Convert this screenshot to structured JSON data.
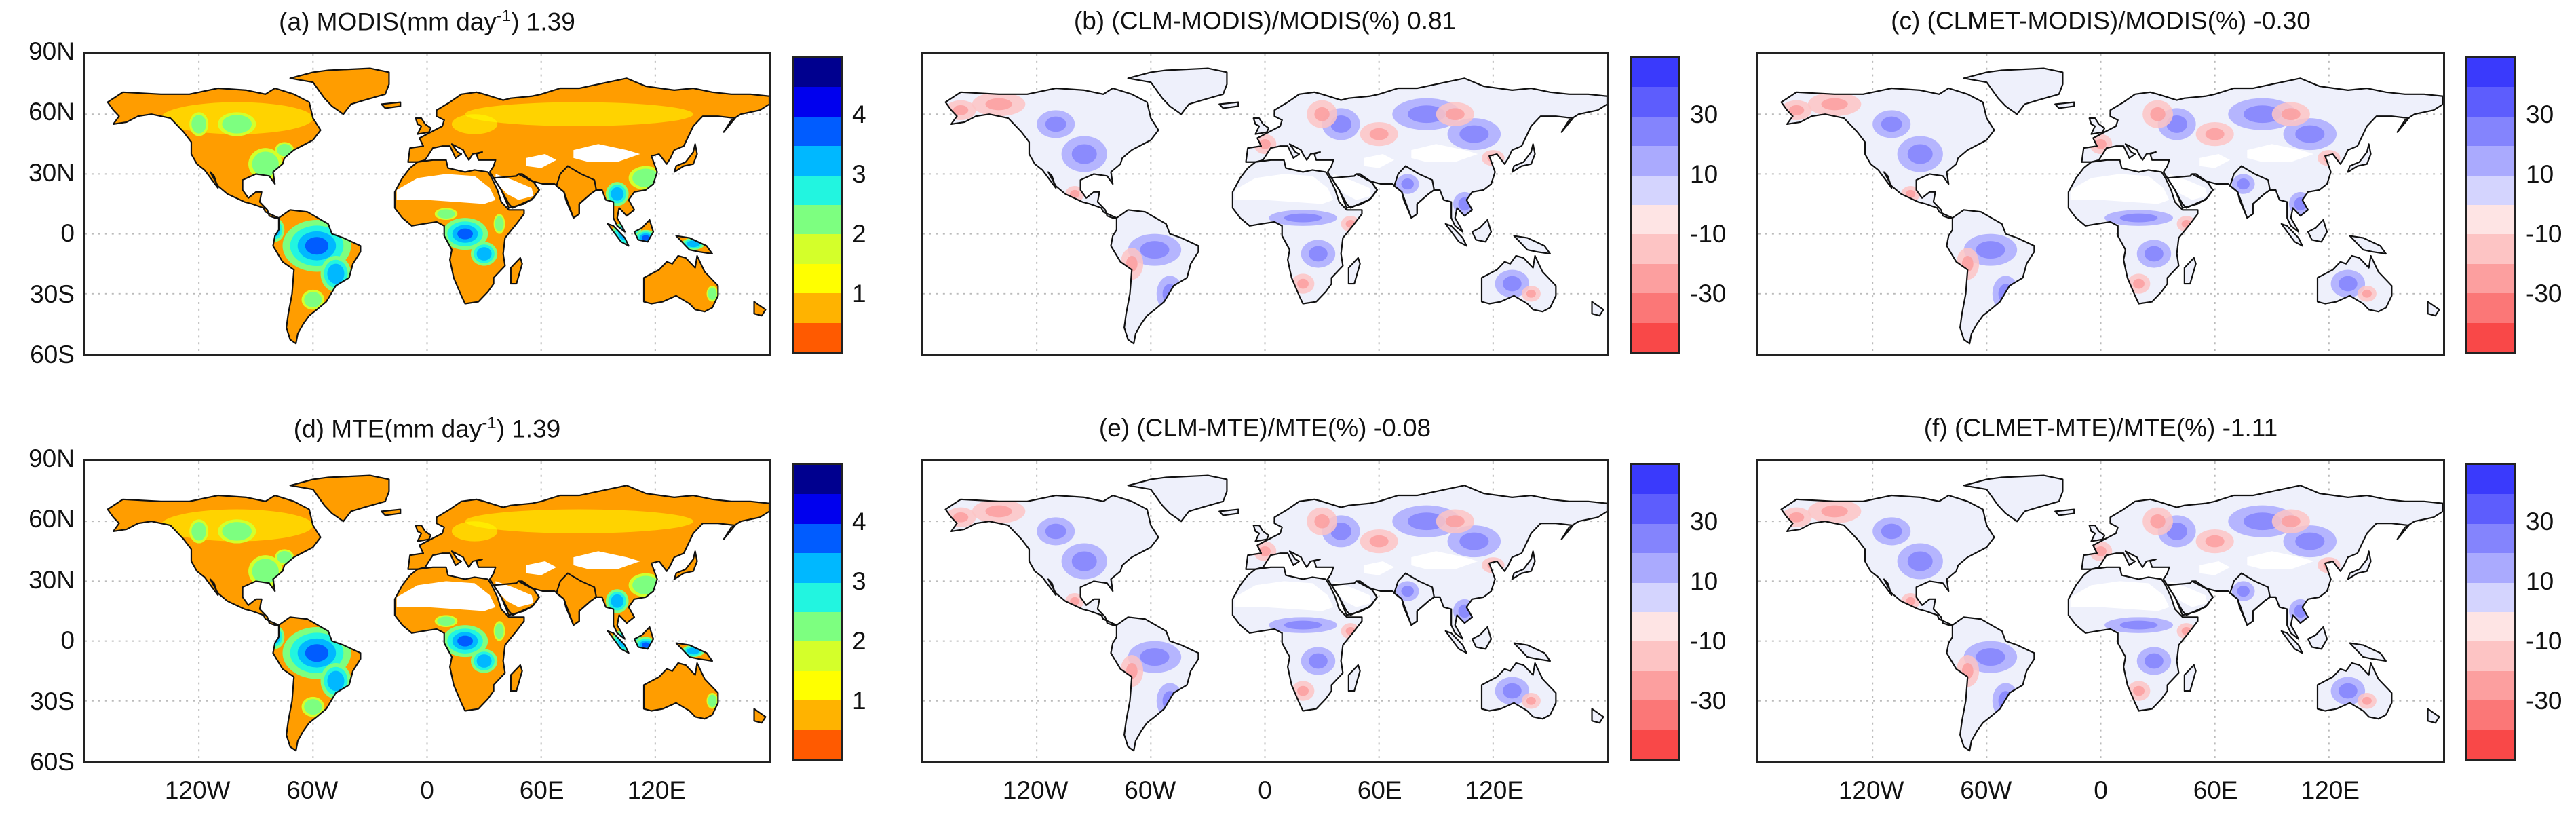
{
  "panels": [
    {
      "title_main": "(a) MODIS(mm day",
      "title_sup": "-1",
      "title_tail": ") 1.39",
      "kind": "et",
      "show_lat": true,
      "show_lon": false
    },
    {
      "title_main": "(b) (CLM-MODIS)/MODIS(%) 0.81",
      "title_sup": "",
      "title_tail": "",
      "kind": "diff",
      "show_lat": false,
      "show_lon": false
    },
    {
      "title_main": "(c) (CLMET-MODIS)/MODIS(%) -0.30",
      "title_sup": "",
      "title_tail": "",
      "kind": "diff",
      "show_lat": false,
      "show_lon": false
    },
    {
      "title_main": "(d) MTE(mm day",
      "title_sup": "-1",
      "title_tail": ") 1.39",
      "kind": "et",
      "show_lat": true,
      "show_lon": true
    },
    {
      "title_main": "(e) (CLM-MTE)/MTE(%) -0.08",
      "title_sup": "",
      "title_tail": "",
      "kind": "diff",
      "show_lat": false,
      "show_lon": true
    },
    {
      "title_main": "(f) (CLMET-MTE)/MTE(%) -1.11",
      "title_sup": "",
      "title_tail": "",
      "kind": "diff",
      "show_lat": false,
      "show_lon": true
    }
  ],
  "lat_ticks": [
    "90N",
    "60N",
    "30N",
    "0",
    "30S",
    "60S"
  ],
  "lon_ticks": [
    "120W",
    "60W",
    "0",
    "60E",
    "120E"
  ],
  "et_colorbar": {
    "ticks": [
      "4",
      "3",
      "2",
      "1"
    ],
    "colors": [
      "#00008f",
      "#0000ee",
      "#005cff",
      "#00b8ff",
      "#22f5e0",
      "#7dff80",
      "#d4ff2a",
      "#ffff00",
      "#ffb300",
      "#ff5a00"
    ]
  },
  "diff_colorbar": {
    "ticks": [
      "30",
      "10",
      "-10",
      "-30"
    ],
    "colors": [
      "#3a3afc",
      "#5d5dfd",
      "#8484fd",
      "#aaaafe",
      "#d4d4fe",
      "#fee4e4",
      "#fdc4c4",
      "#fc9f9f",
      "#fb7777",
      "#f94848"
    ]
  },
  "colors": {
    "land_et_dry": "#ff9d00",
    "land_et_wet": "#1e5ee8",
    "land_diff_pos": "#c6c9fb",
    "land_diff_neg": "#f8c8c8",
    "coastline": "#111111",
    "grid": "#bbbbbb"
  }
}
